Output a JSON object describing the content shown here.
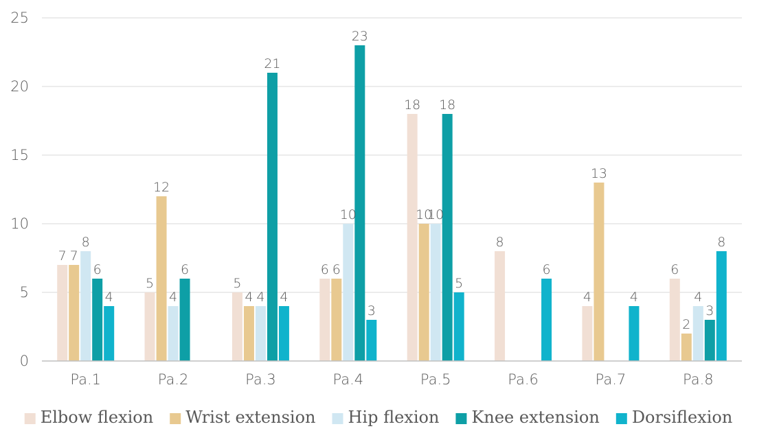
{
  "chart_data": {
    "type": "bar",
    "categories": [
      "Pa.1",
      "Pa.2",
      "Pa.3",
      "Pa.4",
      "Pa.5",
      "Pa.6",
      "Pa.7",
      "Pa.8"
    ],
    "series": [
      {
        "name": "Elbow flexion",
        "color": "#f1dfd4",
        "values": [
          7,
          5,
          5,
          6,
          18,
          8,
          4,
          6
        ]
      },
      {
        "name": "Wrist extension",
        "color": "#e8c990",
        "values": [
          7,
          12,
          4,
          6,
          10,
          null,
          13,
          2
        ]
      },
      {
        "name": "Hip flexion",
        "color": "#d0e7f2",
        "values": [
          8,
          4,
          4,
          10,
          10,
          null,
          null,
          4
        ]
      },
      {
        "name": "Knee extension",
        "color": "#0e9fa6",
        "values": [
          6,
          6,
          21,
          23,
          18,
          null,
          null,
          3
        ]
      },
      {
        "name": "Dorsiflexion",
        "color": "#10b3cc",
        "values": [
          4,
          null,
          4,
          3,
          5,
          6,
          4,
          8
        ]
      }
    ],
    "ylim": [
      0,
      25
    ],
    "yticks": [
      0,
      5,
      10,
      15,
      20,
      25
    ],
    "grid": true,
    "legend": "bottom"
  }
}
